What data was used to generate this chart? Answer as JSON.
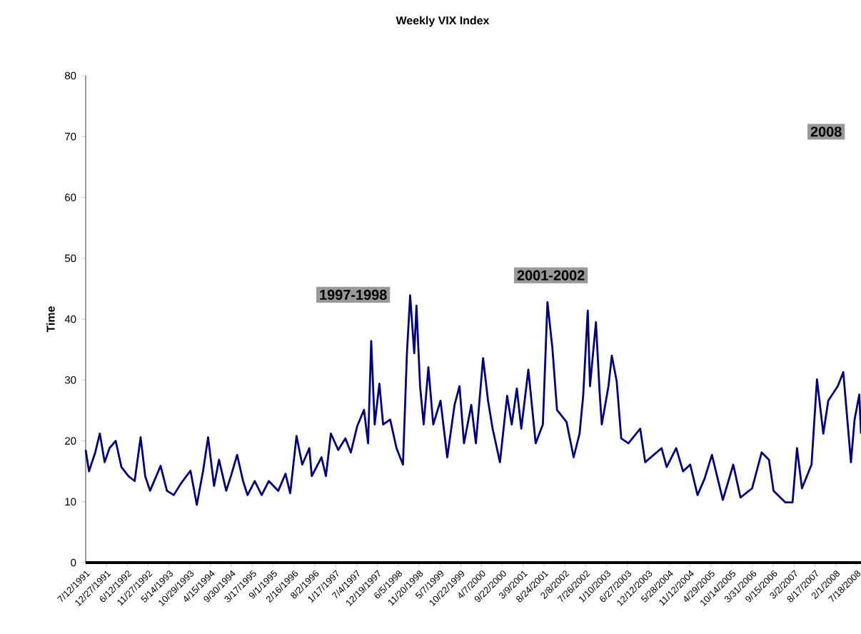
{
  "chart_data": {
    "type": "line",
    "title": "Weekly VIX Index",
    "ylabel": "Time",
    "color": "#000080",
    "xlim": [
      "1991-07-12",
      "2008-08-22"
    ],
    "ylim": [
      0,
      80
    ],
    "yticks": [
      0,
      10,
      20,
      30,
      40,
      50,
      60,
      70,
      80
    ],
    "xticks": [
      {
        "value": "1991-07-12",
        "label": "7/12/1991"
      },
      {
        "value": "1991-12-27",
        "label": "12/27/1991"
      },
      {
        "value": "1992-06-12",
        "label": "6/12/1992"
      },
      {
        "value": "1992-11-27",
        "label": "11/27/1992"
      },
      {
        "value": "1993-05-14",
        "label": "5/14/1993"
      },
      {
        "value": "1993-10-29",
        "label": "10/29/1993"
      },
      {
        "value": "1994-04-15",
        "label": "4/15/1994"
      },
      {
        "value": "1994-09-30",
        "label": "9/30/1994"
      },
      {
        "value": "1995-03-17",
        "label": "3/17/1995"
      },
      {
        "value": "1995-09-01",
        "label": "9/1/1995"
      },
      {
        "value": "1996-02-16",
        "label": "2/16/1996"
      },
      {
        "value": "1996-08-02",
        "label": "8/2/1996"
      },
      {
        "value": "1997-01-17",
        "label": "1/17/1997"
      },
      {
        "value": "1997-07-04",
        "label": "7/4/1997"
      },
      {
        "value": "1997-12-19",
        "label": "12/19/1997"
      },
      {
        "value": "1998-06-05",
        "label": "6/5/1998"
      },
      {
        "value": "1998-11-20",
        "label": "11/20/1998"
      },
      {
        "value": "1999-05-07",
        "label": "5/7/1999"
      },
      {
        "value": "1999-10-22",
        "label": "10/22/1999"
      },
      {
        "value": "2000-04-07",
        "label": "4/7/2000"
      },
      {
        "value": "2000-09-22",
        "label": "9/22/2000"
      },
      {
        "value": "2001-03-09",
        "label": "3/9/2001"
      },
      {
        "value": "2001-08-24",
        "label": "8/24/2001"
      },
      {
        "value": "2002-02-08",
        "label": "2/8/2002"
      },
      {
        "value": "2002-07-26",
        "label": "7/26/2002"
      },
      {
        "value": "2003-01-10",
        "label": "1/10/2003"
      },
      {
        "value": "2003-06-27",
        "label": "6/27/2003"
      },
      {
        "value": "2003-12-12",
        "label": "12/12/2003"
      },
      {
        "value": "2004-05-28",
        "label": "5/28/2004"
      },
      {
        "value": "2004-11-12",
        "label": "11/12/2004"
      },
      {
        "value": "2005-04-29",
        "label": "4/29/2005"
      },
      {
        "value": "2005-10-14",
        "label": "10/14/2005"
      },
      {
        "value": "2006-03-31",
        "label": "3/31/2006"
      },
      {
        "value": "2006-09-15",
        "label": "9/15/2006"
      },
      {
        "value": "2007-03-02",
        "label": "3/2/2007"
      },
      {
        "value": "2007-08-17",
        "label": "8/17/2007"
      },
      {
        "value": "2008-02-01",
        "label": "2/1/2008"
      },
      {
        "value": "2008-07-18",
        "label": "7/18/2008"
      }
    ],
    "x": [
      "1991-07-12",
      "1991-08-08",
      "1991-09-27",
      "1991-11-03",
      "1991-12-12",
      "1992-01-20",
      "1992-03-10",
      "1992-04-25",
      "1992-06-21",
      "1992-08-10",
      "1992-09-27",
      "1992-11-03",
      "1992-12-12",
      "1993-03-07",
      "1993-04-27",
      "1993-06-21",
      "1993-08-18",
      "1993-11-03",
      "1993-12-24",
      "1994-02-13",
      "1994-03-25",
      "1994-05-12",
      "1994-06-21",
      "1994-08-18",
      "1994-09-25",
      "1994-11-14",
      "1995-01-01",
      "1995-02-06",
      "1995-04-05",
      "1995-05-31",
      "1995-07-27",
      "1995-10-12",
      "1995-12-09",
      "1996-01-16",
      "1996-03-07",
      "1996-04-22",
      "1996-06-18",
      "1996-07-08",
      "1996-09-24",
      "1996-10-30",
      "1996-12-09",
      "1997-02-06",
      "1997-04-05",
      "1997-05-19",
      "1997-07-09",
      "1997-09-02",
      "1997-10-05",
      "1997-10-30",
      "1997-11-27",
      "1998-01-04",
      "1998-02-03",
      "1998-04-01",
      "1998-05-22",
      "1998-07-13",
      "1998-08-14",
      "1998-09-09",
      "1998-10-12",
      "1998-10-30",
      "1998-11-28",
      "1998-12-27",
      "1999-02-03",
      "1999-03-14",
      "1999-05-12",
      "1999-07-05",
      "1999-09-02",
      "1999-10-12",
      "1999-11-17",
      "2000-01-15",
      "2000-02-21",
      "2000-04-19",
      "2000-05-29",
      "2000-07-05",
      "2000-09-02",
      "2000-10-30",
      "2000-12-06",
      "2001-01-16",
      "2001-02-21",
      "2001-04-19",
      "2001-06-17",
      "2001-08-14",
      "2001-09-20",
      "2001-10-30",
      "2001-12-06",
      "2002-02-21",
      "2002-04-19",
      "2002-06-06",
      "2002-07-05",
      "2002-08-11",
      "2002-08-29",
      "2002-10-16",
      "2002-11-14",
      "2002-12-02",
      "2003-01-25",
      "2003-02-21",
      "2003-04-01",
      "2003-05-08",
      "2003-07-05",
      "2003-10-08",
      "2003-11-17",
      "2004-03-28",
      "2004-05-08",
      "2004-07-24",
      "2004-09-17",
      "2004-11-14",
      "2005-01-12",
      "2005-03-10",
      "2005-05-08",
      "2005-08-04",
      "2005-10-27",
      "2005-12-24",
      "2006-03-28",
      "2006-06-13",
      "2006-08-11",
      "2006-09-17",
      "2006-12-20",
      "2007-02-17",
      "2007-03-25",
      "2007-05-04",
      "2007-07-20",
      "2007-09-02",
      "2007-10-23",
      "2007-12-02",
      "2008-02-17",
      "2008-04-01",
      "2008-06-02",
      "2008-07-01",
      "2008-08-08",
      "2008-08-22"
    ],
    "values": [
      18.5,
      15.0,
      18.1,
      21.2,
      16.5,
      18.8,
      20.0,
      15.7,
      14.2,
      13.4,
      20.6,
      14.2,
      11.8,
      15.9,
      11.8,
      11.1,
      13.0,
      15.1,
      9.5,
      15.1,
      20.6,
      12.6,
      16.9,
      11.8,
      14.2,
      17.7,
      13.4,
      11.1,
      13.4,
      11.1,
      13.4,
      11.8,
      14.6,
      11.4,
      20.8,
      16.1,
      18.8,
      14.2,
      17.3,
      14.2,
      21.2,
      18.5,
      20.4,
      18.1,
      22.4,
      25.1,
      19.6,
      36.4,
      22.7,
      29.4,
      22.7,
      23.5,
      18.8,
      16.1,
      34.4,
      43.9,
      34.4,
      42.2,
      29.0,
      22.7,
      32.1,
      22.7,
      26.6,
      17.3,
      25.9,
      29.0,
      19.6,
      25.9,
      19.6,
      33.6,
      26.6,
      22.0,
      16.5,
      27.4,
      22.7,
      28.6,
      22.0,
      31.7,
      19.6,
      22.7,
      42.8,
      35.2,
      25.1,
      23.1,
      17.3,
      21.2,
      27.4,
      41.4,
      29.0,
      39.5,
      28.2,
      22.7,
      29.0,
      34.0,
      29.8,
      20.4,
      19.6,
      22.0,
      16.5,
      18.8,
      15.7,
      18.8,
      15.0,
      16.1,
      11.1,
      13.8,
      17.7,
      10.3,
      16.1,
      10.7,
      12.2,
      18.1,
      16.9,
      11.8,
      9.9,
      9.9,
      18.8,
      12.2,
      16.1,
      30.1,
      21.2,
      26.6,
      29.0,
      31.3,
      16.5,
      23.5,
      27.6,
      21.2
    ],
    "annotations": [
      "1997-1998",
      "2001-2002",
      "2008"
    ]
  }
}
